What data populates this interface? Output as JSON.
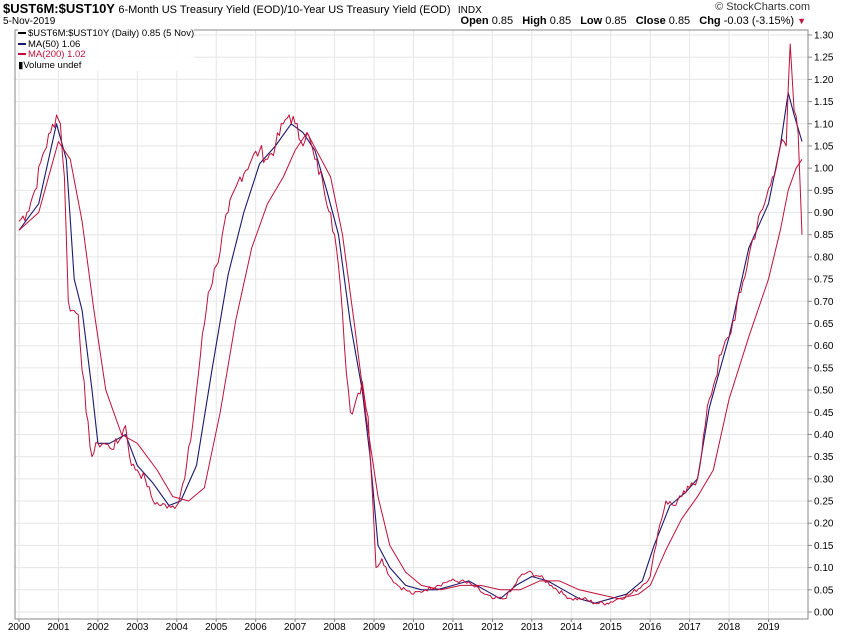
{
  "header": {
    "symbol": "$UST6M:$UST10Y",
    "description": "6-Month US Treasury Yield (EOD)/10-Year US Treasury Yield (EOD)",
    "exchange": "INDX",
    "brand": "© StockCharts.com",
    "date": "5-Nov-2019",
    "open_label": "Open",
    "open": "0.85",
    "high_label": "High",
    "high": "0.85",
    "low_label": "Low",
    "low": "0.85",
    "close_label": "Close",
    "close": "0.85",
    "chg_label": "Chg",
    "chg": "-0.03 (-3.15%)",
    "chg_arrow": "▼"
  },
  "legend": {
    "main": "$UST6M:$UST10Y (Daily) 0.85 (5 Nov)",
    "ma50": "MA(50) 1.06",
    "ma200": "MA(200) 1.02",
    "volume": "Volume undef"
  },
  "colors": {
    "price": "#c0103a",
    "ma50": "#1a1a6e",
    "ma200": "#c0103a",
    "grid": "#e6e6e6"
  },
  "chart_data": {
    "type": "line",
    "title": "$UST6M:$UST10Y 6-Month US Treasury Yield (EOD)/10-Year US Treasury Yield (EOD)",
    "xlabel": "",
    "ylabel": "",
    "xlim": [
      2000.0,
      2019.9
    ],
    "ylim": [
      0.0,
      1.3
    ],
    "x_ticks": [
      "2000",
      "2001",
      "2002",
      "2003",
      "2004",
      "2005",
      "2006",
      "2007",
      "2008",
      "2009",
      "2010",
      "2011",
      "2012",
      "2013",
      "2014",
      "2015",
      "2016",
      "2017",
      "2018",
      "2019"
    ],
    "y_ticks": [
      "0.00",
      "0.05",
      "0.10",
      "0.15",
      "0.20",
      "0.25",
      "0.30",
      "0.35",
      "0.40",
      "0.45",
      "0.50",
      "0.55",
      "0.60",
      "0.65",
      "0.70",
      "0.75",
      "0.80",
      "0.85",
      "0.90",
      "0.95",
      "1.00",
      "1.05",
      "1.10",
      "1.15",
      "1.20",
      "1.25",
      "1.30"
    ],
    "series": [
      {
        "name": "$UST6M:$UST10Y (Daily)",
        "x": [
          2000.0,
          2000.2,
          2000.4,
          2000.6,
          2000.8,
          2000.95,
          2001.05,
          2001.15,
          2001.25,
          2001.35,
          2001.5,
          2001.7,
          2001.85,
          2002.0,
          2002.15,
          2002.3,
          2002.5,
          2002.7,
          2002.85,
          2003.0,
          2003.2,
          2003.4,
          2003.6,
          2003.8,
          2004.0,
          2004.2,
          2004.4,
          2004.6,
          2004.8,
          2005.0,
          2005.3,
          2005.6,
          2005.9,
          2006.1,
          2006.3,
          2006.5,
          2006.7,
          2006.85,
          2007.0,
          2007.15,
          2007.3,
          2007.5,
          2007.7,
          2007.9,
          2008.0,
          2008.1,
          2008.25,
          2008.4,
          2008.55,
          2008.7,
          2008.85,
          2008.95,
          2009.05,
          2009.2,
          2009.4,
          2009.6,
          2009.8,
          2010.0,
          2010.3,
          2010.6,
          2010.9,
          2011.2,
          2011.5,
          2011.8,
          2012.0,
          2012.3,
          2012.5,
          2012.7,
          2012.9,
          2013.2,
          2013.5,
          2013.8,
          2014.0,
          2014.3,
          2014.6,
          2014.9,
          2015.2,
          2015.5,
          2015.8,
          2016.0,
          2016.2,
          2016.4,
          2016.6,
          2016.8,
          2017.0,
          2017.2,
          2017.5,
          2017.8,
          2018.0,
          2018.3,
          2018.6,
          2018.9,
          2019.1,
          2019.3,
          2019.45,
          2019.55,
          2019.65,
          2019.75,
          2019.85
        ],
        "values": [
          0.88,
          0.9,
          0.95,
          1.03,
          1.08,
          1.12,
          1.1,
          0.98,
          0.7,
          0.68,
          0.67,
          0.45,
          0.35,
          0.38,
          0.38,
          0.37,
          0.38,
          0.42,
          0.33,
          0.32,
          0.3,
          0.25,
          0.24,
          0.24,
          0.24,
          0.3,
          0.42,
          0.58,
          0.72,
          0.78,
          0.9,
          0.98,
          1.02,
          1.04,
          1.02,
          1.05,
          1.1,
          1.12,
          1.1,
          1.06,
          1.08,
          1.02,
          0.97,
          0.9,
          0.85,
          0.78,
          0.6,
          0.45,
          0.48,
          0.52,
          0.44,
          0.28,
          0.1,
          0.12,
          0.08,
          0.06,
          0.05,
          0.04,
          0.05,
          0.06,
          0.07,
          0.07,
          0.06,
          0.04,
          0.03,
          0.03,
          0.05,
          0.08,
          0.09,
          0.08,
          0.06,
          0.04,
          0.03,
          0.03,
          0.02,
          0.02,
          0.03,
          0.04,
          0.06,
          0.08,
          0.18,
          0.25,
          0.24,
          0.26,
          0.28,
          0.3,
          0.48,
          0.58,
          0.62,
          0.72,
          0.84,
          0.92,
          0.98,
          1.05,
          1.05,
          1.28,
          1.13,
          1.08,
          0.85
        ]
      },
      {
        "name": "MA(50)",
        "x": [
          2000.0,
          2000.5,
          2000.95,
          2001.2,
          2001.4,
          2001.6,
          2001.85,
          2002.0,
          2002.3,
          2002.7,
          2003.0,
          2003.4,
          2003.8,
          2004.1,
          2004.5,
          2004.9,
          2005.3,
          2005.7,
          2006.1,
          2006.5,
          2006.9,
          2007.2,
          2007.5,
          2007.8,
          2008.1,
          2008.4,
          2008.7,
          2008.9,
          2009.1,
          2009.4,
          2009.8,
          2010.2,
          2010.6,
          2011.0,
          2011.4,
          2011.8,
          2012.2,
          2012.6,
          2013.0,
          2013.4,
          2013.8,
          2014.2,
          2014.6,
          2015.0,
          2015.4,
          2015.8,
          2016.1,
          2016.5,
          2016.9,
          2017.2,
          2017.5,
          2018.0,
          2018.5,
          2019.0,
          2019.3,
          2019.5,
          2019.65,
          2019.85
        ],
        "values": [
          0.86,
          0.92,
          1.1,
          1.02,
          0.75,
          0.68,
          0.5,
          0.38,
          0.38,
          0.4,
          0.33,
          0.29,
          0.24,
          0.25,
          0.33,
          0.55,
          0.76,
          0.9,
          1.01,
          1.05,
          1.1,
          1.08,
          1.04,
          0.95,
          0.85,
          0.65,
          0.5,
          0.35,
          0.15,
          0.1,
          0.06,
          0.05,
          0.05,
          0.06,
          0.07,
          0.05,
          0.03,
          0.06,
          0.08,
          0.07,
          0.05,
          0.03,
          0.02,
          0.03,
          0.04,
          0.07,
          0.15,
          0.24,
          0.27,
          0.3,
          0.46,
          0.62,
          0.82,
          0.92,
          1.05,
          1.17,
          1.12,
          1.06
        ]
      },
      {
        "name": "MA(200)",
        "x": [
          2000.0,
          2000.5,
          2001.0,
          2001.3,
          2001.6,
          2001.9,
          2002.2,
          2002.6,
          2003.0,
          2003.5,
          2003.9,
          2004.3,
          2004.7,
          2005.1,
          2005.5,
          2005.9,
          2006.3,
          2006.7,
          2007.0,
          2007.3,
          2007.6,
          2007.9,
          2008.2,
          2008.5,
          2008.8,
          2009.1,
          2009.4,
          2009.8,
          2010.2,
          2010.7,
          2011.2,
          2011.7,
          2012.2,
          2012.7,
          2013.2,
          2013.7,
          2014.2,
          2014.7,
          2015.2,
          2015.7,
          2016.0,
          2016.4,
          2016.8,
          2017.2,
          2017.6,
          2018.0,
          2018.5,
          2019.0,
          2019.3,
          2019.5,
          2019.7,
          2019.85
        ],
        "values": [
          0.86,
          0.9,
          1.06,
          1.02,
          0.88,
          0.68,
          0.5,
          0.4,
          0.38,
          0.32,
          0.26,
          0.25,
          0.28,
          0.45,
          0.66,
          0.82,
          0.92,
          0.98,
          1.04,
          1.08,
          1.03,
          0.98,
          0.85,
          0.65,
          0.44,
          0.26,
          0.15,
          0.09,
          0.06,
          0.05,
          0.06,
          0.06,
          0.05,
          0.05,
          0.07,
          0.07,
          0.05,
          0.04,
          0.03,
          0.04,
          0.06,
          0.14,
          0.21,
          0.26,
          0.32,
          0.48,
          0.62,
          0.75,
          0.86,
          0.95,
          1.0,
          1.02
        ]
      }
    ]
  }
}
